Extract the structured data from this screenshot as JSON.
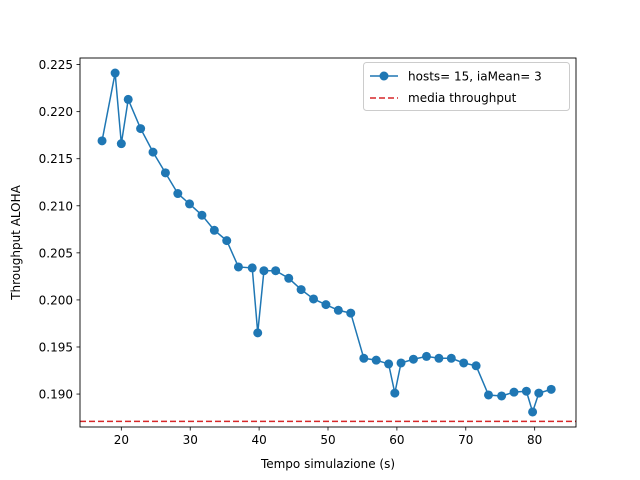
{
  "chart_data": {
    "type": "line",
    "xlabel": "Tempo simulazione (s)",
    "ylabel": "Throughput ALOHA",
    "xlim": [
      14,
      86
    ],
    "ylim": [
      0.1865,
      0.2257
    ],
    "xticks": [
      20,
      30,
      40,
      50,
      60,
      70,
      80
    ],
    "yticks": [
      0.19,
      0.195,
      0.2,
      0.205,
      0.21,
      0.215,
      0.22,
      0.225
    ],
    "ytick_format": 3,
    "legend_position": "upper right",
    "grid": false,
    "series": [
      {
        "name": "hosts= 15, iaMean= 3",
        "color": "#1f77b4",
        "marker": "circle",
        "x": [
          17.2,
          19.1,
          20.0,
          21.0,
          22.8,
          24.6,
          26.4,
          28.2,
          29.9,
          31.7,
          33.5,
          35.3,
          37.0,
          39.0,
          39.8,
          40.7,
          42.4,
          44.3,
          46.1,
          47.9,
          49.7,
          51.5,
          53.3,
          55.2,
          57.0,
          58.8,
          59.7,
          60.6,
          62.4,
          64.3,
          66.1,
          67.9,
          69.7,
          71.5,
          73.3,
          75.2,
          77.0,
          78.8,
          79.7,
          80.6,
          82.4
        ],
        "y": [
          0.2169,
          0.2241,
          0.2166,
          0.2213,
          0.2182,
          0.2157,
          0.2135,
          0.2113,
          0.2102,
          0.209,
          0.2074,
          0.2063,
          0.2035,
          0.2034,
          0.1965,
          0.2031,
          0.2031,
          0.2023,
          0.2011,
          0.2001,
          0.1995,
          0.1989,
          0.1986,
          0.1938,
          0.1936,
          0.1932,
          0.1901,
          0.1933,
          0.1937,
          0.194,
          0.1938,
          0.1938,
          0.1933,
          0.193,
          0.1899,
          0.1898,
          0.1902,
          0.1903,
          0.1881,
          0.1901,
          0.1905
        ]
      },
      {
        "name": "media throughput",
        "color": "#d62728",
        "style": "dashed",
        "y": 0.1871
      }
    ]
  }
}
